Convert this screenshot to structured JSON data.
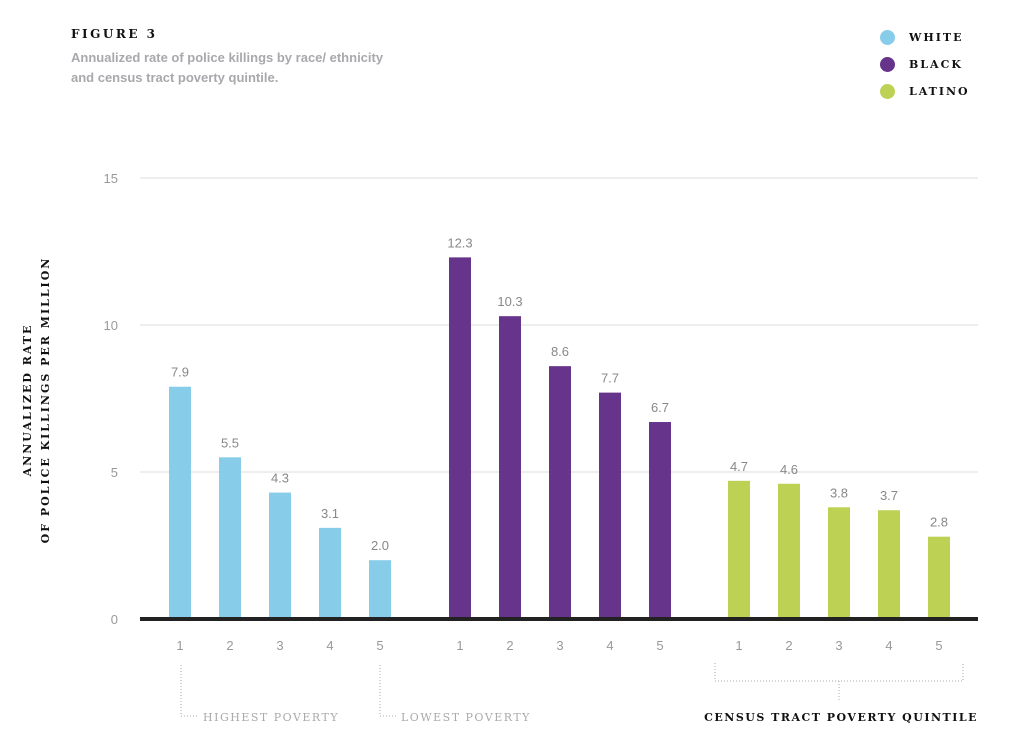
{
  "figure_label": "FIGURE 3",
  "subtitle": "Annualized rate of police killings by race/ ethnicity and census tract poverty quintile.",
  "chart_data": {
    "type": "bar",
    "title": "Annualized rate of police killings by race/ethnicity and census tract poverty quintile.",
    "ylabel_lines": [
      "ANNUALIZED RATE",
      "OF POLICE KILLINGS PER MILLION"
    ],
    "xlabel": "CENSUS TRACT POVERTY QUINTILE",
    "categories": [
      "1",
      "2",
      "3",
      "4",
      "5"
    ],
    "ylim": [
      0,
      15
    ],
    "yticks": [
      "0",
      "5",
      "10",
      "15"
    ],
    "grid": true,
    "legend_position": "top-right",
    "series": [
      {
        "name": "WHITE",
        "color": "#87cce8",
        "values": [
          7.9,
          5.5,
          4.3,
          3.1,
          2.0
        ],
        "labels": [
          "7.9",
          "5.5",
          "4.3",
          "3.1",
          "2.0"
        ]
      },
      {
        "name": "BLACK",
        "color": "#66348a",
        "values": [
          12.3,
          10.3,
          8.6,
          7.7,
          6.7
        ],
        "labels": [
          "12.3",
          "10.3",
          "8.6",
          "7.7",
          "6.7"
        ]
      },
      {
        "name": "LATINO",
        "color": "#bdd154",
        "values": [
          4.7,
          4.6,
          3.8,
          3.7,
          2.8
        ],
        "labels": [
          "4.7",
          "4.6",
          "3.8",
          "3.7",
          "2.8"
        ]
      }
    ],
    "annotations": [
      "HIGHEST POVERTY",
      "LOWEST POVERTY"
    ]
  }
}
